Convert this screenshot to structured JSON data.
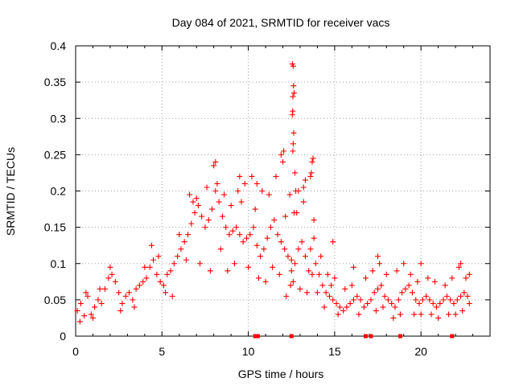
{
  "chart_data": {
    "type": "scatter",
    "title": "Day 084 of 2021, SRMTID for receiver vacs",
    "xlabel": "GPS time / hours",
    "ylabel": "SRMTID / TECUs",
    "xlim": [
      0,
      24
    ],
    "ylim": [
      0,
      0.4
    ],
    "x_ticks": [
      0,
      5,
      10,
      15,
      20
    ],
    "x_tick_labels": [
      "0",
      "5",
      "10",
      "15",
      "20"
    ],
    "y_ticks": [
      0,
      0.05,
      0.1,
      0.15,
      0.2,
      0.25,
      0.3,
      0.35,
      0.4
    ],
    "y_tick_labels": [
      "0",
      "0.05",
      "0.1",
      "0.15",
      "0.2",
      "0.25",
      "0.3",
      "0.35",
      "0.4"
    ],
    "grid": true,
    "marker": "plus",
    "color": "#ff0000",
    "series": [
      {
        "name": "SRMTID",
        "points": [
          [
            0.1,
            0.035
          ],
          [
            0.3,
            0.045
          ],
          [
            0.5,
            0.028
          ],
          [
            0.7,
            0.055
          ],
          [
            0.9,
            0.03
          ],
          [
            1.1,
            0.04
          ],
          [
            1.3,
            0.05
          ],
          [
            1.5,
            0.045
          ],
          [
            1.7,
            0.065
          ],
          [
            1.9,
            0.08
          ],
          [
            2.1,
            0.085
          ],
          [
            2.3,
            0.075
          ],
          [
            2.5,
            0.06
          ],
          [
            2.7,
            0.045
          ],
          [
            2.9,
            0.055
          ],
          [
            3.1,
            0.06
          ],
          [
            3.3,
            0.05
          ],
          [
            3.5,
            0.065
          ],
          [
            3.7,
            0.07
          ],
          [
            3.9,
            0.075
          ],
          [
            4.1,
            0.08
          ],
          [
            4.3,
            0.095
          ],
          [
            4.5,
            0.105
          ],
          [
            4.7,
            0.085
          ],
          [
            4.9,
            0.075
          ],
          [
            5.1,
            0.07
          ],
          [
            5.3,
            0.085
          ],
          [
            5.5,
            0.09
          ],
          [
            5.7,
            0.1
          ],
          [
            5.9,
            0.11
          ],
          [
            6.1,
            0.12
          ],
          [
            6.3,
            0.13
          ],
          [
            6.5,
            0.14
          ],
          [
            6.7,
            0.155
          ],
          [
            6.9,
            0.17
          ],
          [
            7.1,
            0.18
          ],
          [
            7.3,
            0.165
          ],
          [
            7.5,
            0.15
          ],
          [
            7.7,
            0.16
          ],
          [
            7.9,
            0.175
          ],
          [
            8.1,
            0.2
          ],
          [
            8.3,
            0.185
          ],
          [
            8.5,
            0.165
          ],
          [
            8.7,
            0.15
          ],
          [
            8.9,
            0.14
          ],
          [
            9.1,
            0.145
          ],
          [
            9.3,
            0.15
          ],
          [
            9.5,
            0.14
          ],
          [
            9.7,
            0.13
          ],
          [
            9.9,
            0.135
          ],
          [
            10.1,
            0.14
          ],
          [
            10.3,
            0.15
          ],
          [
            10.5,
            0.125
          ],
          [
            10.7,
            0.11
          ],
          [
            10.9,
            0.12
          ],
          [
            11.1,
            0.135
          ],
          [
            11.3,
            0.15
          ],
          [
            11.5,
            0.16
          ],
          [
            11.7,
            0.14
          ],
          [
            11.9,
            0.13
          ],
          [
            12.1,
            0.12
          ],
          [
            12.3,
            0.11
          ],
          [
            12.5,
            0.105
          ],
          [
            12.7,
            0.1
          ],
          [
            12.9,
            0.12
          ],
          [
            13.1,
            0.13
          ],
          [
            13.3,
            0.11
          ],
          [
            13.5,
            0.09
          ],
          [
            13.7,
            0.085
          ],
          [
            13.9,
            0.1
          ],
          [
            14.1,
            0.085
          ],
          [
            14.3,
            0.07
          ],
          [
            14.5,
            0.06
          ],
          [
            14.7,
            0.055
          ],
          [
            14.9,
            0.05
          ],
          [
            15.1,
            0.045
          ],
          [
            15.3,
            0.04
          ],
          [
            15.5,
            0.035
          ],
          [
            15.7,
            0.04
          ],
          [
            15.9,
            0.045
          ],
          [
            16.1,
            0.05
          ],
          [
            16.3,
            0.055
          ],
          [
            16.5,
            0.05
          ],
          [
            16.7,
            0.04
          ],
          [
            16.9,
            0.045
          ],
          [
            17.1,
            0.05
          ],
          [
            17.3,
            0.06
          ],
          [
            17.5,
            0.065
          ],
          [
            17.7,
            0.07
          ],
          [
            17.9,
            0.055
          ],
          [
            18.1,
            0.05
          ],
          [
            18.3,
            0.045
          ],
          [
            18.5,
            0.04
          ],
          [
            18.7,
            0.05
          ],
          [
            18.9,
            0.06
          ],
          [
            19.1,
            0.065
          ],
          [
            19.3,
            0.07
          ],
          [
            19.5,
            0.06
          ],
          [
            19.7,
            0.05
          ],
          [
            19.9,
            0.045
          ],
          [
            20.1,
            0.05
          ],
          [
            20.3,
            0.055
          ],
          [
            20.5,
            0.05
          ],
          [
            20.7,
            0.045
          ],
          [
            20.9,
            0.04
          ],
          [
            21.1,
            0.045
          ],
          [
            21.3,
            0.05
          ],
          [
            21.5,
            0.055
          ],
          [
            21.7,
            0.05
          ],
          [
            21.9,
            0.045
          ],
          [
            22.1,
            0.05
          ],
          [
            22.3,
            0.055
          ],
          [
            22.5,
            0.06
          ],
          [
            22.7,
            0.055
          ],
          [
            0.25,
            0.02
          ],
          [
            0.6,
            0.06
          ],
          [
            1.0,
            0.025
          ],
          [
            1.4,
            0.065
          ],
          [
            2.0,
            0.095
          ],
          [
            2.6,
            0.035
          ],
          [
            3.4,
            0.04
          ],
          [
            4.0,
            0.095
          ],
          [
            4.4,
            0.125
          ],
          [
            4.8,
            0.11
          ],
          [
            5.2,
            0.06
          ],
          [
            5.6,
            0.055
          ],
          [
            6.0,
            0.14
          ],
          [
            6.4,
            0.105
          ],
          [
            6.8,
            0.185
          ],
          [
            7.0,
            0.19
          ],
          [
            7.2,
            0.1
          ],
          [
            7.6,
            0.205
          ],
          [
            7.8,
            0.09
          ],
          [
            8.0,
            0.235
          ],
          [
            8.2,
            0.21
          ],
          [
            8.4,
            0.12
          ],
          [
            8.6,
            0.195
          ],
          [
            8.8,
            0.09
          ],
          [
            9.0,
            0.18
          ],
          [
            9.2,
            0.1
          ],
          [
            9.4,
            0.2
          ],
          [
            9.6,
            0.185
          ],
          [
            9.8,
            0.21
          ],
          [
            10.0,
            0.095
          ],
          [
            10.2,
            0.22
          ],
          [
            10.4,
            0.175
          ],
          [
            10.6,
            0.08
          ],
          [
            10.8,
            0.2
          ],
          [
            11.0,
            0.075
          ],
          [
            11.2,
            0.195
          ],
          [
            11.4,
            0.095
          ],
          [
            11.6,
            0.22
          ],
          [
            11.8,
            0.085
          ],
          [
            12.0,
            0.24
          ],
          [
            12.2,
            0.055
          ],
          [
            12.4,
            0.195
          ],
          [
            12.6,
            0.075
          ],
          [
            12.8,
            0.17
          ],
          [
            13.0,
            0.065
          ],
          [
            13.2,
            0.185
          ],
          [
            13.4,
            0.06
          ],
          [
            13.6,
            0.12
          ],
          [
            13.8,
            0.135
          ],
          [
            14.0,
            0.06
          ],
          [
            14.2,
            0.11
          ],
          [
            14.4,
            0.04
          ],
          [
            14.6,
            0.085
          ],
          [
            14.8,
            0.07
          ],
          [
            15.0,
            0.08
          ],
          [
            15.2,
            0.03
          ],
          [
            15.6,
            0.065
          ],
          [
            16.0,
            0.07
          ],
          [
            16.4,
            0.03
          ],
          [
            16.8,
            0.08
          ],
          [
            17.2,
            0.09
          ],
          [
            17.4,
            0.035
          ],
          [
            17.6,
            0.1
          ],
          [
            17.8,
            0.04
          ],
          [
            18.0,
            0.085
          ],
          [
            18.4,
            0.025
          ],
          [
            18.6,
            0.09
          ],
          [
            18.8,
            0.03
          ],
          [
            19.0,
            0.1
          ],
          [
            19.4,
            0.085
          ],
          [
            19.6,
            0.03
          ],
          [
            19.8,
            0.075
          ],
          [
            20.0,
            0.03
          ],
          [
            20.4,
            0.08
          ],
          [
            20.6,
            0.03
          ],
          [
            20.8,
            0.075
          ],
          [
            21.0,
            0.025
          ],
          [
            21.4,
            0.07
          ],
          [
            21.6,
            0.03
          ],
          [
            21.8,
            0.08
          ],
          [
            22.0,
            0.03
          ],
          [
            22.2,
            0.095
          ],
          [
            22.4,
            0.035
          ],
          [
            22.6,
            0.08
          ],
          [
            22.8,
            0.045
          ],
          [
            6.6,
            0.195
          ],
          [
            8.1,
            0.24
          ],
          [
            9.5,
            0.22
          ],
          [
            10.5,
            0.21
          ],
          [
            11.9,
            0.25
          ],
          [
            12.05,
            0.255
          ],
          [
            12.15,
            0.165
          ],
          [
            12.9,
            0.2
          ],
          [
            13.2,
            0.205
          ],
          [
            13.3,
            0.215
          ],
          [
            13.6,
            0.22
          ],
          [
            13.65,
            0.225
          ],
          [
            13.7,
            0.24
          ],
          [
            13.75,
            0.245
          ],
          [
            13.8,
            0.16
          ],
          [
            14.9,
            0.13
          ],
          [
            16.1,
            0.095
          ],
          [
            17.5,
            0.11
          ],
          [
            20.0,
            0.1
          ],
          [
            22.3,
            0.1
          ],
          [
            22.8,
            0.085
          ],
          [
            12.55,
            0.375
          ],
          [
            12.6,
            0.372
          ],
          [
            12.62,
            0.345
          ],
          [
            12.58,
            0.33
          ],
          [
            12.65,
            0.335
          ],
          [
            12.57,
            0.31
          ],
          [
            12.55,
            0.305
          ],
          [
            12.63,
            0.28
          ],
          [
            12.6,
            0.265
          ],
          [
            12.58,
            0.255
          ],
          [
            12.7,
            0.225
          ],
          [
            12.75,
            0.2
          ],
          [
            12.65,
            0.17
          ],
          [
            12.5,
            0.09
          ],
          [
            12.45,
            0.07
          ]
        ]
      }
    ],
    "gap_markers_x": [
      10.4,
      10.55,
      12.5,
      16.8,
      17.1,
      18.8,
      21.8
    ]
  }
}
